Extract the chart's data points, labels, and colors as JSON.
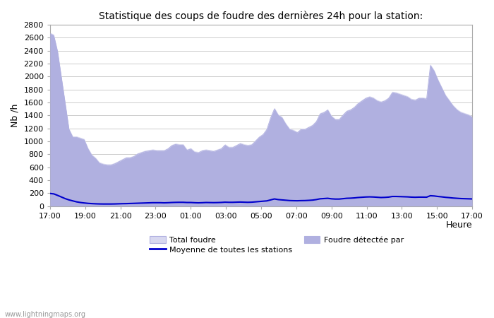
{
  "title": "Statistique des coups de foudre des dernières 24h pour la station:",
  "xlabel": "Heure",
  "ylabel": "Nb /h",
  "watermark": "www.lightningmaps.org",
  "x_labels": [
    "17:00",
    "19:00",
    "21:00",
    "23:00",
    "01:00",
    "03:00",
    "05:00",
    "07:00",
    "09:00",
    "11:00",
    "13:00",
    "15:00",
    "17:00"
  ],
  "ylim": [
    0,
    2800
  ],
  "yticks": [
    0,
    200,
    400,
    600,
    800,
    1000,
    1200,
    1400,
    1600,
    1800,
    2000,
    2200,
    2400,
    2600,
    2800
  ],
  "total_foudre_color": "#d8d8f0",
  "foudre_detectee_color": "#b0b0e0",
  "moyenne_color": "#0000cc",
  "legend_labels": [
    "Total foudre",
    "Moyenne de toutes les stations",
    "Foudre détectée par"
  ],
  "total_foudre": [
    2680,
    2650,
    2400,
    2000,
    1600,
    1200,
    1080,
    1080,
    1060,
    1040,
    900,
    800,
    750,
    680,
    660,
    650,
    650,
    670,
    700,
    730,
    760,
    760,
    780,
    820,
    840,
    860,
    870,
    880,
    870,
    870,
    870,
    900,
    950,
    970,
    960,
    960,
    880,
    900,
    850,
    840,
    870,
    880,
    870,
    860,
    880,
    900,
    960,
    920,
    920,
    950,
    980,
    960,
    950,
    960,
    1020,
    1080,
    1120,
    1200,
    1380,
    1520,
    1420,
    1380,
    1280,
    1200,
    1180,
    1150,
    1200,
    1200,
    1230,
    1260,
    1320,
    1440,
    1460,
    1500,
    1400,
    1350,
    1350,
    1420,
    1480,
    1500,
    1540,
    1600,
    1640,
    1680,
    1700,
    1680,
    1640,
    1620,
    1640,
    1680,
    1770,
    1760,
    1740,
    1720,
    1700,
    1660,
    1650,
    1680,
    1680,
    1670,
    2190,
    2100,
    1960,
    1840,
    1720,
    1640,
    1560,
    1500,
    1460,
    1440,
    1420,
    1390
  ],
  "foudre_detectee": [
    2660,
    2630,
    2380,
    1980,
    1580,
    1180,
    1060,
    1060,
    1040,
    1020,
    880,
    780,
    730,
    660,
    640,
    630,
    630,
    650,
    680,
    710,
    740,
    740,
    760,
    800,
    820,
    840,
    850,
    860,
    850,
    850,
    850,
    880,
    930,
    950,
    940,
    940,
    860,
    880,
    830,
    820,
    850,
    860,
    850,
    840,
    860,
    880,
    940,
    900,
    900,
    930,
    960,
    940,
    930,
    940,
    1000,
    1060,
    1100,
    1180,
    1360,
    1500,
    1400,
    1360,
    1260,
    1180,
    1160,
    1130,
    1180,
    1180,
    1210,
    1240,
    1300,
    1420,
    1440,
    1480,
    1380,
    1330,
    1330,
    1400,
    1460,
    1480,
    1520,
    1580,
    1620,
    1660,
    1680,
    1660,
    1620,
    1600,
    1620,
    1660,
    1750,
    1740,
    1720,
    1700,
    1680,
    1640,
    1630,
    1660,
    1660,
    1650,
    2170,
    2080,
    1940,
    1820,
    1700,
    1620,
    1540,
    1480,
    1440,
    1420,
    1400,
    1370
  ],
  "moyenne": [
    195,
    188,
    165,
    140,
    115,
    95,
    80,
    65,
    55,
    48,
    42,
    38,
    35,
    33,
    32,
    32,
    32,
    33,
    35,
    37,
    38,
    40,
    42,
    44,
    46,
    48,
    50,
    52,
    52,
    52,
    50,
    52,
    55,
    57,
    58,
    58,
    55,
    55,
    52,
    50,
    52,
    55,
    54,
    53,
    54,
    56,
    60,
    58,
    58,
    60,
    62,
    60,
    58,
    60,
    65,
    70,
    75,
    80,
    95,
    110,
    100,
    95,
    90,
    85,
    83,
    82,
    84,
    85,
    88,
    92,
    100,
    112,
    116,
    120,
    112,
    108,
    108,
    114,
    120,
    122,
    126,
    132,
    136,
    140,
    142,
    140,
    136,
    132,
    134,
    138,
    148,
    148,
    146,
    144,
    142,
    138,
    136,
    138,
    138,
    137,
    160,
    156,
    148,
    142,
    135,
    130,
    124,
    120,
    116,
    114,
    112,
    110
  ],
  "bg_color": "#ffffff",
  "grid_color": "#cccccc",
  "spine_color": "#aaaaaa",
  "figsize": [
    7.0,
    4.5
  ],
  "dpi": 100
}
